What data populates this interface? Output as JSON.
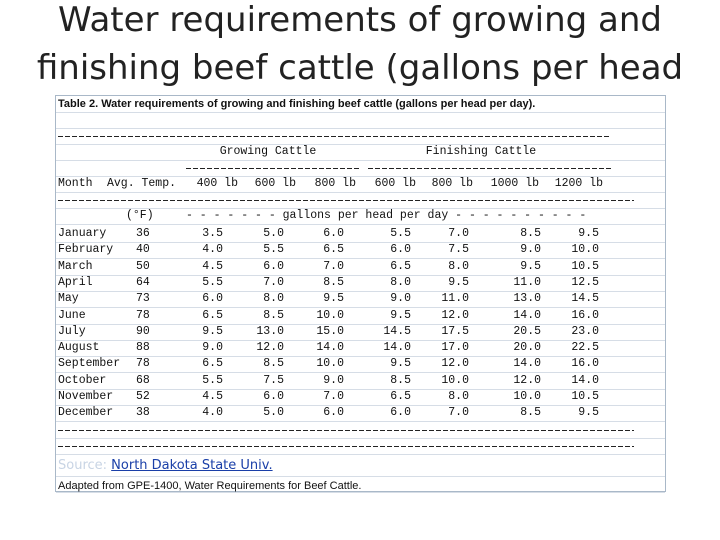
{
  "title": "Water requirements of growing and finishing beef cattle (gallons per head",
  "table": {
    "caption": "Table 2. Water requirements of growing and finishing beef cattle (gallons per head per day).",
    "groups": [
      "Growing Cattle",
      "Finishing Cattle"
    ],
    "columns": [
      "Month",
      "Avg. Temp.",
      "400 lb",
      "600 lb",
      "800 lb",
      "600 lb",
      "800 lb",
      "1000 lb",
      "1200 lb"
    ],
    "units": [
      "(°F)",
      "- - - - - - - gallons per head per day - - - - - - - - - -"
    ],
    "rows": [
      [
        "January",
        "36",
        "3.5",
        "5.0",
        "6.0",
        "5.5",
        "7.0",
        "8.5",
        "9.5"
      ],
      [
        "February",
        "40",
        "4.0",
        "5.5",
        "6.5",
        "6.0",
        "7.5",
        "9.0",
        "10.0"
      ],
      [
        "March",
        "50",
        "4.5",
        "6.0",
        "7.0",
        "6.5",
        "8.0",
        "9.5",
        "10.5"
      ],
      [
        "April",
        "64",
        "5.5",
        "7.0",
        "8.5",
        "8.0",
        "9.5",
        "11.0",
        "12.5"
      ],
      [
        "May",
        "73",
        "6.0",
        "8.0",
        "9.5",
        "9.0",
        "11.0",
        "13.0",
        "14.5"
      ],
      [
        "June",
        "78",
        "6.5",
        "8.5",
        "10.0",
        "9.5",
        "12.0",
        "14.0",
        "16.0"
      ],
      [
        "July",
        "90",
        "9.5",
        "13.0",
        "15.0",
        "14.5",
        "17.5",
        "20.5",
        "23.0"
      ],
      [
        "August",
        "88",
        "9.0",
        "12.0",
        "14.0",
        "14.0",
        "17.0",
        "20.0",
        "22.5"
      ],
      [
        "September",
        "78",
        "6.5",
        "8.5",
        "10.0",
        "9.5",
        "12.0",
        "14.0",
        "16.0"
      ],
      [
        "October",
        "68",
        "5.5",
        "7.5",
        "9.0",
        "8.5",
        "10.0",
        "12.0",
        "14.0"
      ],
      [
        "November",
        "52",
        "4.5",
        "6.0",
        "7.0",
        "6.5",
        "8.0",
        "10.0",
        "10.5"
      ],
      [
        "December",
        "38",
        "4.0",
        "5.0",
        "6.0",
        "6.0",
        "7.0",
        "8.5",
        "9.5"
      ]
    ],
    "source": {
      "label": "Source:",
      "link": "North Dakota State Univ."
    },
    "note": "Adapted from GPE-1400, Water Requirements for Beef Cattle."
  }
}
